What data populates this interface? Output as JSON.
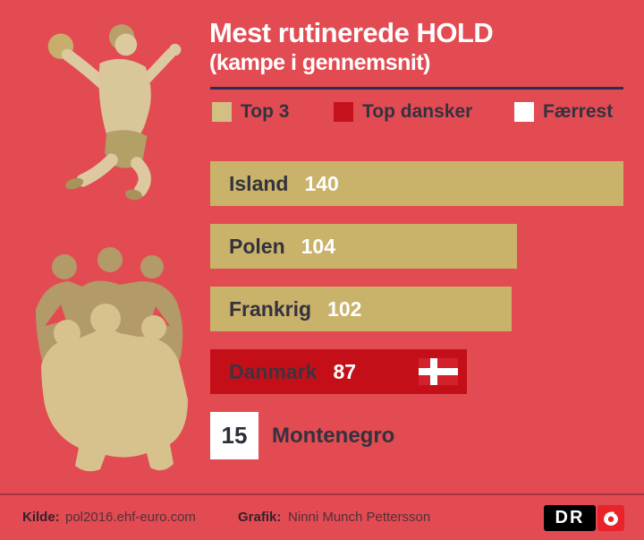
{
  "title": "Mest rutinerede HOLD",
  "subtitle": "(kampe i gennemsnit)",
  "legend": [
    {
      "label": "Top 3",
      "color": "#d3be83"
    },
    {
      "label": "Top dansker",
      "color": "#c6121c"
    },
    {
      "label": "Færrest",
      "color": "#ffffff"
    }
  ],
  "chart_data": {
    "type": "bar",
    "orientation": "horizontal",
    "title": "Mest rutinerede HOLD",
    "subtitle": "(kampe i gennemsnit)",
    "categories": [
      "Island",
      "Polen",
      "Frankrig",
      "Danmark",
      "Montenegro"
    ],
    "values": [
      140,
      104,
      102,
      87,
      15
    ],
    "max": 140,
    "legend_position": "top",
    "grid": false,
    "bars": [
      {
        "label": "Island",
        "value": 140,
        "type": "top3"
      },
      {
        "label": "Polen",
        "value": 104,
        "type": "top3"
      },
      {
        "label": "Frankrig",
        "value": 102,
        "type": "top3"
      },
      {
        "label": "Danmark",
        "value": 87,
        "type": "top_dansker",
        "flag": "denmark-flag-icon"
      },
      {
        "label": "Montenegro",
        "value": 15,
        "type": "faerrest"
      }
    ]
  },
  "footer": {
    "source_label": "Kilde:",
    "source_value": "pol2016.ehf-euro.com",
    "credit_label": "Grafik:",
    "credit_value": "Ninni Munch Pettersson",
    "logo_text": "DR"
  },
  "colors": {
    "background": "#e34b52",
    "bar_gold": "#c9b269",
    "bar_red": "#c40f18",
    "bar_white": "#ffffff",
    "text_navy": "#33323f",
    "title_white": "#ffffff",
    "divider_navy": "#2e2d52",
    "flag_red": "#d2212c",
    "logo_red": "#e8232a"
  },
  "icons": {
    "flag": "denmark-flag-icon",
    "logo_eye": "dr-eye-icon",
    "illustration_top": "handball-player-illustration",
    "illustration_bottom": "team-illustration"
  }
}
